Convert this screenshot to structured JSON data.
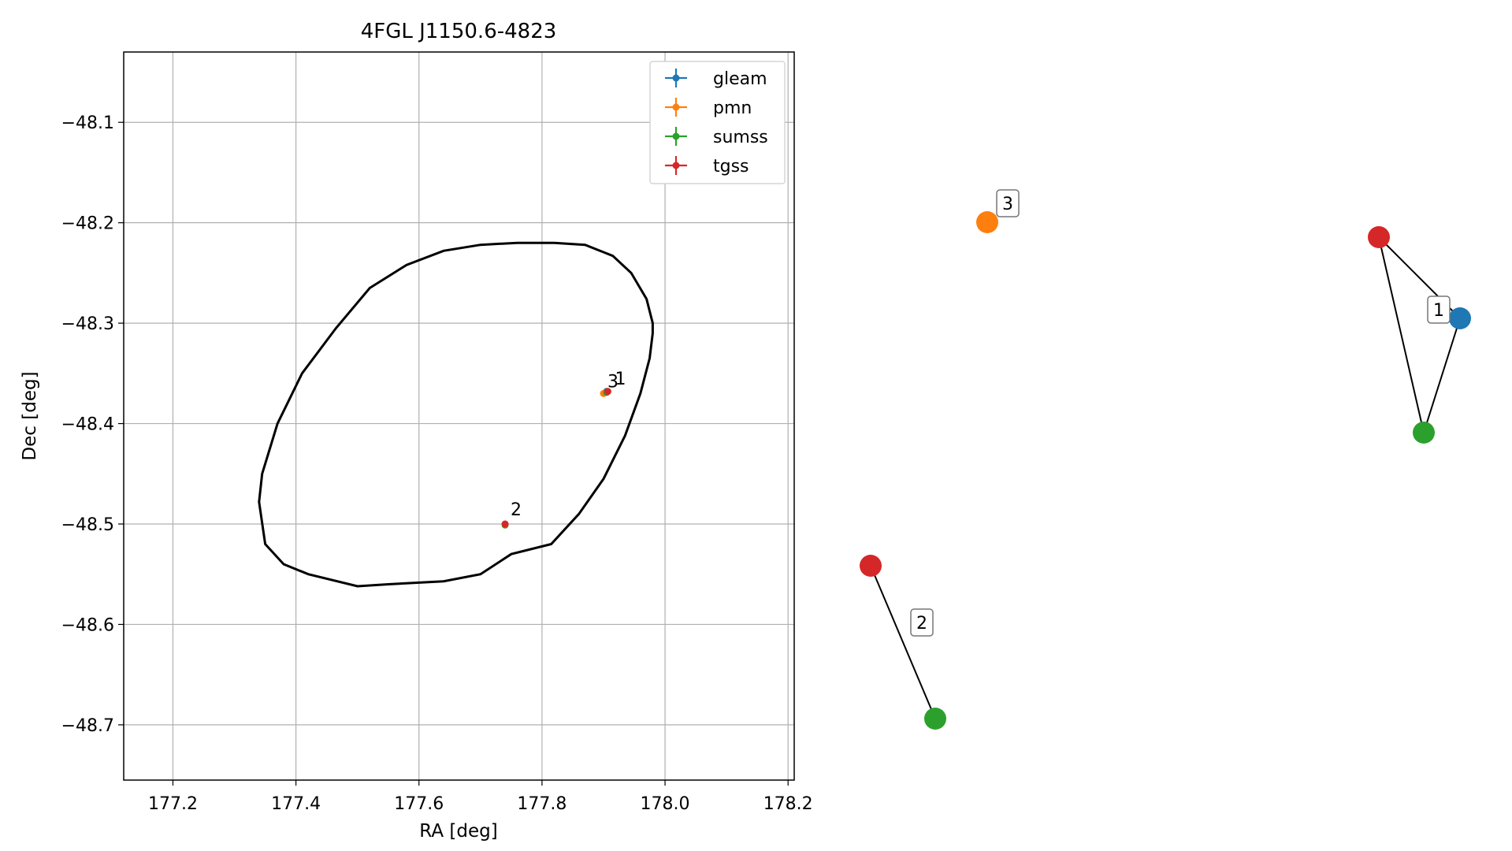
{
  "chart_data": [
    {
      "type": "scatter",
      "title": "4FGL J1150.6-4823",
      "xlabel": "RA [deg]",
      "ylabel": "Dec [deg]",
      "xlim": [
        177.12,
        178.21
      ],
      "ylim": [
        -48.755,
        -48.03
      ],
      "xticks": [
        177.2,
        177.4,
        177.6,
        177.8,
        178.0,
        178.2
      ],
      "xtick_labels": [
        "177.2",
        "177.4",
        "177.6",
        "177.8",
        "178.0",
        "178.2"
      ],
      "yticks": [
        -48.1,
        -48.2,
        -48.3,
        -48.4,
        -48.5,
        -48.6,
        -48.7
      ],
      "ytick_labels": [
        "−48.1",
        "−48.2",
        "−48.3",
        "−48.4",
        "−48.5",
        "−48.6",
        "−48.7"
      ],
      "grid": true,
      "legend_position": "top-right",
      "series": [
        {
          "name": "gleam",
          "color": "#1f77b4",
          "points": [
            {
              "x": 177.905,
              "y": -48.368
            }
          ]
        },
        {
          "name": "pmn",
          "color": "#ff7f0e",
          "points": [
            {
              "x": 177.9,
              "y": -48.37
            }
          ]
        },
        {
          "name": "sumss",
          "color": "#2ca02c",
          "points": [
            {
              "x": 177.905,
              "y": -48.369
            },
            {
              "x": 177.74,
              "y": -48.501
            }
          ]
        },
        {
          "name": "tgss",
          "color": "#d62728",
          "points": [
            {
              "x": 177.907,
              "y": -48.368
            },
            {
              "x": 177.74,
              "y": -48.5
            }
          ]
        }
      ],
      "ellipse": {
        "center_ra": 177.655,
        "center_dec": -48.392,
        "points": [
          [
            177.82,
            -48.22
          ],
          [
            177.87,
            -48.222
          ],
          [
            177.915,
            -48.233
          ],
          [
            177.945,
            -48.25
          ],
          [
            177.97,
            -48.276
          ],
          [
            177.98,
            -48.3
          ],
          [
            177.98,
            -48.31
          ],
          [
            177.975,
            -48.335
          ],
          [
            177.96,
            -48.37
          ],
          [
            177.935,
            -48.412
          ],
          [
            177.9,
            -48.455
          ],
          [
            177.86,
            -48.49
          ],
          [
            177.815,
            -48.52
          ],
          [
            177.75,
            -48.53
          ],
          [
            177.7,
            -48.55
          ],
          [
            177.64,
            -48.557
          ],
          [
            177.55,
            -48.56
          ],
          [
            177.5,
            -48.562
          ],
          [
            177.42,
            -48.55
          ],
          [
            177.38,
            -48.54
          ],
          [
            177.35,
            -48.52
          ],
          [
            177.34,
            -48.478
          ],
          [
            177.345,
            -48.45
          ],
          [
            177.37,
            -48.4
          ],
          [
            177.41,
            -48.35
          ],
          [
            177.465,
            -48.305
          ],
          [
            177.52,
            -48.265
          ],
          [
            177.58,
            -48.242
          ],
          [
            177.64,
            -48.228
          ],
          [
            177.7,
            -48.222
          ],
          [
            177.76,
            -48.22
          ],
          [
            177.82,
            -48.22
          ]
        ]
      },
      "annotations": [
        {
          "text": "3",
          "x": 177.9,
          "y": -48.37
        },
        {
          "text": "1",
          "x": 177.907,
          "y": -48.368
        },
        {
          "text": "2",
          "x": 177.74,
          "y": -48.5
        }
      ]
    },
    {
      "type": "graph",
      "nodes": [
        {
          "id": "pmn",
          "catalog": "pmn",
          "color": "#ff7f0e"
        },
        {
          "id": "tgss-a",
          "catalog": "tgss",
          "color": "#d62728"
        },
        {
          "id": "gleam",
          "catalog": "gleam",
          "color": "#1f77b4"
        },
        {
          "id": "sumss-a",
          "catalog": "sumss",
          "color": "#2ca02c"
        },
        {
          "id": "tgss-b",
          "catalog": "tgss",
          "color": "#d62728"
        },
        {
          "id": "sumss-b",
          "catalog": "sumss",
          "color": "#2ca02c"
        }
      ],
      "edges": [
        [
          "tgss-a",
          "gleam"
        ],
        [
          "tgss-a",
          "sumss-a"
        ],
        [
          "gleam",
          "sumss-a"
        ],
        [
          "tgss-b",
          "sumss-b"
        ]
      ],
      "cluster_labels": [
        "3",
        "1",
        "2"
      ]
    }
  ]
}
